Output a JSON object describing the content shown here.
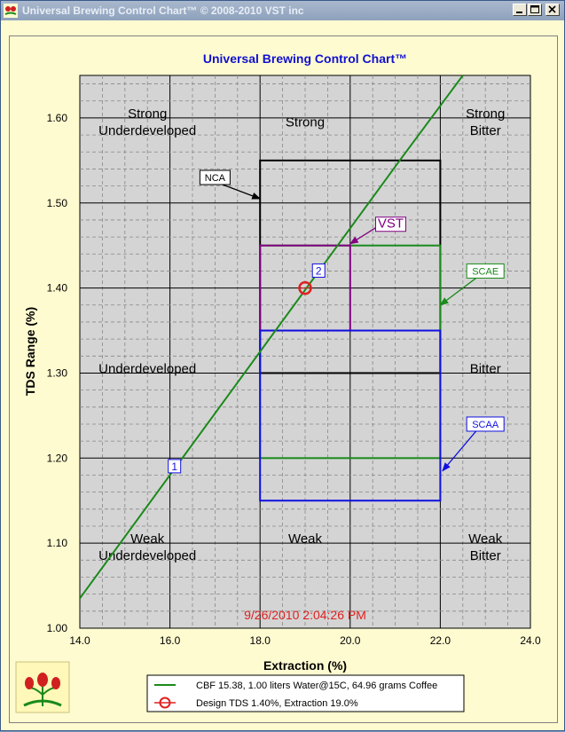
{
  "window": {
    "title": "Universal Brewing Control Chart™  © 2008-2010   VST inc"
  },
  "chart_data": {
    "type": "line",
    "title": "Universal Brewing Control Chart™",
    "xlabel": "Extraction (%)",
    "ylabel": "TDS Range (%)",
    "xlim": [
      14.0,
      24.0
    ],
    "ylim": [
      1.0,
      1.65
    ],
    "xticks": [
      "14.0",
      "16.0",
      "18.0",
      "20.0",
      "22.0",
      "24.0"
    ],
    "yticks": [
      "1.00",
      "1.10",
      "1.20",
      "1.30",
      "1.40",
      "1.50",
      "1.60"
    ],
    "timestamp": "9/26/2010 2:04:26 PM",
    "brew_line": {
      "name": "CBF 15.38,  1.00 liters Water@15C, 64.96 grams Coffee",
      "color": "#1a8a1a",
      "points": [
        [
          14.0,
          1.035
        ],
        [
          21.1,
          1.55
        ],
        [
          22.5,
          1.65
        ]
      ]
    },
    "design_point": {
      "name": "Design TDS 1.40%, Extraction  19.0%",
      "x": 19.0,
      "y": 1.4,
      "color": "#e02020"
    },
    "markers": [
      {
        "label": "1",
        "x": 16.1,
        "y": 1.19
      },
      {
        "label": "2",
        "x": 19.3,
        "y": 1.42
      }
    ],
    "zones": [
      {
        "name": "NCA",
        "x": [
          18.0,
          22.0
        ],
        "y": [
          1.3,
          1.55
        ],
        "color": "#000000"
      },
      {
        "name": "SCAE",
        "x": [
          18.0,
          22.0
        ],
        "y": [
          1.2,
          1.45
        ],
        "color": "#1a8a1a"
      },
      {
        "name": "VST",
        "x": [
          18.0,
          20.0
        ],
        "y": [
          1.35,
          1.45
        ],
        "color": "#800080"
      },
      {
        "name": "SCAA",
        "x": [
          18.0,
          22.0
        ],
        "y": [
          1.15,
          1.35
        ],
        "color": "#1010e0"
      }
    ],
    "regions": [
      {
        "lines": [
          "Strong",
          "Underdeveloped"
        ],
        "x": 15.5,
        "y": 1.6
      },
      {
        "lines": [
          "Strong"
        ],
        "x": 19.0,
        "y": 1.59
      },
      {
        "lines": [
          "Strong",
          "Bitter"
        ],
        "x": 23.0,
        "y": 1.6
      },
      {
        "lines": [
          "Underdeveloped"
        ],
        "x": 15.5,
        "y": 1.3
      },
      {
        "lines": [
          "Bitter"
        ],
        "x": 23.0,
        "y": 1.3
      },
      {
        "lines": [
          "Weak",
          "Underdeveloped"
        ],
        "x": 15.5,
        "y": 1.1
      },
      {
        "lines": [
          "Weak"
        ],
        "x": 19.0,
        "y": 1.1
      },
      {
        "lines": [
          "Weak",
          "Bitter"
        ],
        "x": 23.0,
        "y": 1.1
      }
    ],
    "callouts": [
      {
        "name": "NCA",
        "label_x": 17.0,
        "label_y": 1.53,
        "arrow_to_x": 18.0,
        "arrow_to_y": 1.505,
        "color": "#000000"
      },
      {
        "name": "VST",
        "label_x": 20.9,
        "label_y": 1.475,
        "arrow_to_x": 20.0,
        "arrow_to_y": 1.452,
        "color": "#800080"
      },
      {
        "name": "SCAE",
        "label_x": 23.0,
        "label_y": 1.42,
        "arrow_to_x": 22.0,
        "arrow_to_y": 1.38,
        "color": "#1a8a1a"
      },
      {
        "name": "SCAA",
        "label_x": 23.0,
        "label_y": 1.24,
        "arrow_to_x": 22.05,
        "arrow_to_y": 1.185,
        "color": "#1010e0"
      }
    ]
  }
}
